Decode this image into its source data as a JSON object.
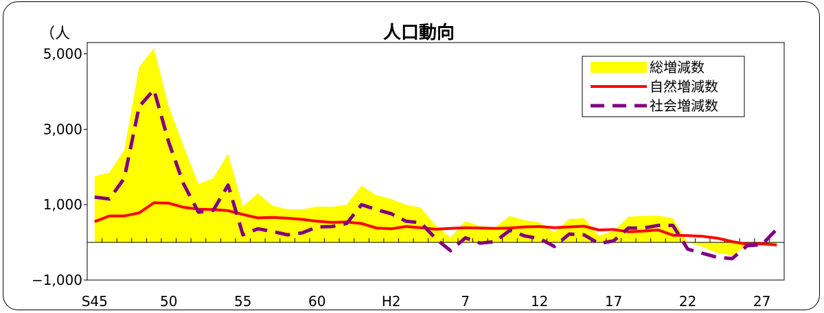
{
  "chart_data": {
    "type": "area",
    "title": "人口動向",
    "ylabel": "（人",
    "xlabel": "",
    "ylim": [
      -1000,
      5300
    ],
    "yticks": [
      5000,
      3000,
      1000,
      -1000
    ],
    "ytick_labels": [
      "5,000",
      "3,000",
      "1,000",
      "−1,000"
    ],
    "x_ticks": [
      {
        "i": 0,
        "label": "S45"
      },
      {
        "i": 5,
        "label": "50"
      },
      {
        "i": 10,
        "label": "55"
      },
      {
        "i": 15,
        "label": "60"
      },
      {
        "i": 20,
        "label": "H2"
      },
      {
        "i": 25,
        "label": "7"
      },
      {
        "i": 30,
        "label": "12"
      },
      {
        "i": 35,
        "label": "17"
      },
      {
        "i": 40,
        "label": "22"
      },
      {
        "i": 45,
        "label": "27"
      }
    ],
    "legend_position": "top-right",
    "series": [
      {
        "name": "総増減数",
        "style": "area",
        "color": "#ffff00",
        "values": [
          1750,
          1850,
          2450,
          4650,
          5150,
          3600,
          2550,
          1550,
          1700,
          2350,
          950,
          1300,
          970,
          880,
          870,
          950,
          940,
          1000,
          1500,
          1250,
          1150,
          1000,
          920,
          450,
          130,
          560,
          430,
          400,
          700,
          590,
          530,
          260,
          620,
          640,
          180,
          300,
          680,
          700,
          710,
          640,
          0,
          -120,
          -280,
          -350,
          -80,
          -50,
          -90
        ]
      },
      {
        "name": "自然増減数",
        "style": "solid",
        "color": "#ff0000",
        "values": [
          550,
          700,
          700,
          780,
          1050,
          1040,
          930,
          880,
          870,
          840,
          740,
          650,
          660,
          640,
          610,
          560,
          530,
          540,
          500,
          380,
          360,
          420,
          390,
          350,
          370,
          390,
          380,
          370,
          380,
          410,
          420,
          390,
          410,
          430,
          330,
          340,
          280,
          300,
          330,
          190,
          180,
          160,
          110,
          20,
          -50,
          -40,
          -70
        ]
      },
      {
        "name": "社会増減数",
        "style": "dashed",
        "color": "#800080",
        "values": [
          1200,
          1150,
          1700,
          3600,
          4050,
          2650,
          1550,
          800,
          850,
          1520,
          200,
          360,
          290,
          200,
          250,
          410,
          420,
          500,
          1000,
          870,
          760,
          560,
          520,
          100,
          -220,
          120,
          -20,
          20,
          320,
          170,
          100,
          -110,
          220,
          200,
          -30,
          40,
          380,
          380,
          450,
          450,
          -180,
          -290,
          -400,
          -430,
          -90,
          -60,
          350
        ]
      }
    ]
  }
}
